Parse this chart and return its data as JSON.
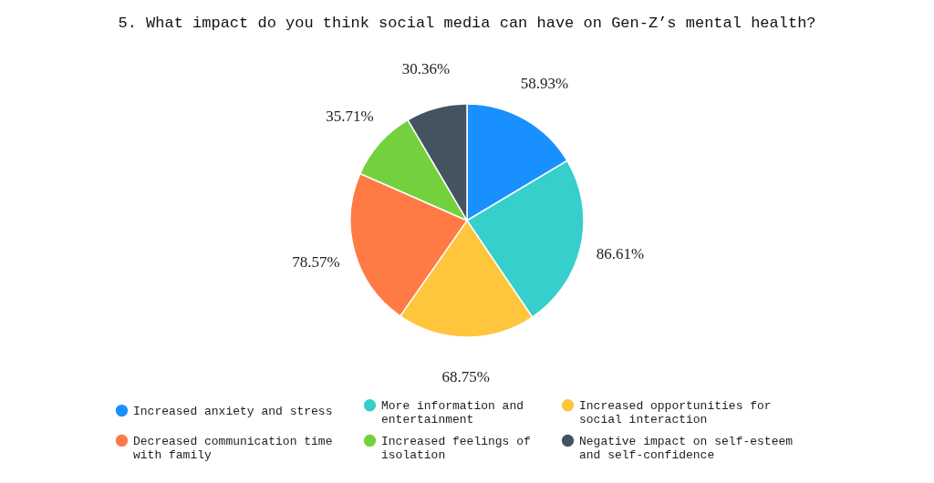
{
  "chart_data": {
    "type": "pie",
    "title": "5. What impact do you think social media can have on Gen-Z’s mental health?",
    "categories": [
      "Increased anxiety and stress",
      "More information and entertainment",
      "Increased opportunities for social interaction",
      "Decreased communication time with family",
      "Increased feelings of isolation",
      "Negative impact on self-esteem and self-confidence"
    ],
    "values": [
      58.93,
      86.61,
      68.75,
      78.57,
      35.71,
      30.36
    ],
    "value_labels": [
      "58.93%",
      "86.61%",
      "68.75%",
      "78.57%",
      "35.71%",
      "30.36%"
    ],
    "colors": [
      "#1890ff",
      "#36cfcb",
      "#ffc53d",
      "#ff7a45",
      "#73d13d",
      "#435360"
    ],
    "legend": "bottom"
  }
}
